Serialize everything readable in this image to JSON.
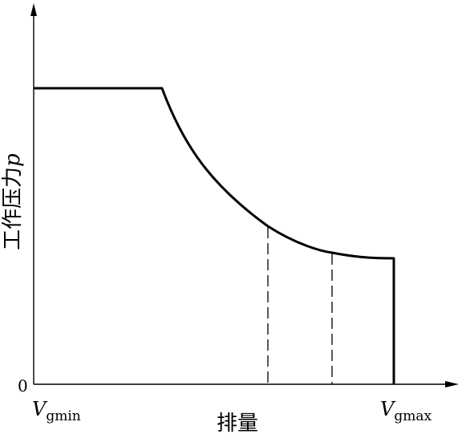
{
  "diagram": {
    "type": "pressure-displacement characteristic",
    "y_axis": {
      "label": "工作压力",
      "symbol": "p"
    },
    "x_axis": {
      "label": "排量"
    },
    "origin_label": "0",
    "x_min_label": {
      "symbol": "V",
      "subscript": "gmin"
    },
    "x_max_label": {
      "symbol": "V",
      "subscript": "gmax"
    },
    "curve": {
      "segments": [
        "constant-pressure plateau",
        "hyperbolic decline",
        "flat tail",
        "vertical cutoff at Vgmax"
      ],
      "dashed_markers": 2
    },
    "colors": {
      "line": "#000000",
      "background": "#ffffff"
    }
  }
}
